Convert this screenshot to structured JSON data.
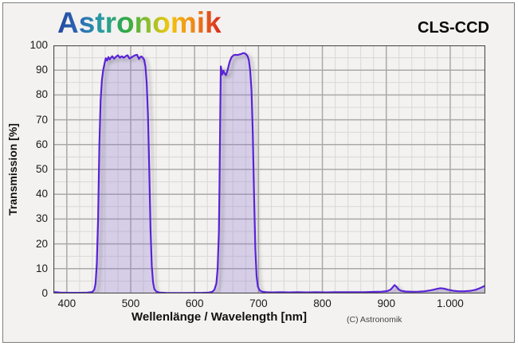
{
  "header": {
    "logo_text": "Astronomik",
    "filter_name": "CLS-CCD"
  },
  "footer": {
    "copyright": "(C) Astronomik"
  },
  "chart_data": {
    "type": "area",
    "title": "CLS-CCD",
    "xlabel": "Wellenlänge / Wavelength [nm]",
    "ylabel": "Transmission [%]",
    "xlim": [
      379,
      1055
    ],
    "ylim": [
      0,
      100
    ],
    "grid": "on",
    "x_major_ticks": [
      400,
      500,
      600,
      700,
      800,
      900,
      1000
    ],
    "x_tick_labels": [
      "400",
      "500",
      "600",
      "700",
      "800",
      "900",
      "1.000"
    ],
    "x_minor_start": 380,
    "x_minor_step": 20,
    "y_major_step": 10,
    "y_minor_step": 5,
    "y_tick_values": [
      0,
      10,
      20,
      30,
      40,
      50,
      60,
      70,
      80,
      90,
      100
    ],
    "colors": {
      "line": "#5a23d6",
      "fill": "#8c73d2",
      "fill_opacity": 0.28,
      "grid_major": "#a9a9a9",
      "grid_minor": "#d9d8d6",
      "plot_border": "#4d4d4d",
      "background": "#f3f2f0",
      "shadow": "#8a8a8a"
    },
    "series": [
      {
        "name": "CLS-CCD transmission",
        "points": [
          [
            379,
            0.6
          ],
          [
            390,
            0.4
          ],
          [
            405,
            0.3
          ],
          [
            420,
            0.3
          ],
          [
            432,
            0.4
          ],
          [
            440,
            0.6
          ],
          [
            443,
            1.5
          ],
          [
            445,
            4
          ],
          [
            447,
            12
          ],
          [
            449,
            30
          ],
          [
            451,
            60
          ],
          [
            453,
            78
          ],
          [
            455,
            86
          ],
          [
            457,
            90
          ],
          [
            459,
            92.5
          ],
          [
            461,
            94.8
          ],
          [
            463,
            93.8
          ],
          [
            465,
            95.3
          ],
          [
            467,
            94.3
          ],
          [
            469,
            95
          ],
          [
            471,
            95.6
          ],
          [
            474,
            94.6
          ],
          [
            477,
            95.4
          ],
          [
            480,
            96
          ],
          [
            483,
            95
          ],
          [
            486,
            95.6
          ],
          [
            489,
            95
          ],
          [
            492,
            95.6
          ],
          [
            495,
            96
          ],
          [
            498,
            94.7
          ],
          [
            501,
            95.1
          ],
          [
            504,
            95.6
          ],
          [
            507,
            96
          ],
          [
            510,
            96.2
          ],
          [
            513,
            94.5
          ],
          [
            515,
            95.3
          ],
          [
            517,
            95.5
          ],
          [
            519,
            95
          ],
          [
            521,
            94.2
          ],
          [
            523,
            91.5
          ],
          [
            525,
            85
          ],
          [
            527,
            72
          ],
          [
            529,
            50
          ],
          [
            531,
            26
          ],
          [
            533,
            11
          ],
          [
            535,
            4.5
          ],
          [
            537,
            1.8
          ],
          [
            540,
            0.8
          ],
          [
            545,
            0.4
          ],
          [
            555,
            0.25
          ],
          [
            570,
            0.2
          ],
          [
            585,
            0.2
          ],
          [
            600,
            0.25
          ],
          [
            612,
            0.3
          ],
          [
            622,
            0.4
          ],
          [
            628,
            0.7
          ],
          [
            631,
            1.5
          ],
          [
            634,
            4
          ],
          [
            636,
            10
          ],
          [
            638,
            25
          ],
          [
            639,
            45
          ],
          [
            640,
            70
          ],
          [
            641,
            91.5
          ],
          [
            642,
            90
          ],
          [
            643,
            88.2
          ],
          [
            644,
            88.8
          ],
          [
            645,
            89.8
          ],
          [
            647,
            88.6
          ],
          [
            649,
            88
          ],
          [
            651,
            89.5
          ],
          [
            653,
            91.5
          ],
          [
            655,
            93.5
          ],
          [
            658,
            95.3
          ],
          [
            661,
            96
          ],
          [
            664,
            96.2
          ],
          [
            667,
            96.1
          ],
          [
            670,
            96.3
          ],
          [
            673,
            96.5
          ],
          [
            676,
            96.9
          ],
          [
            679,
            96.7
          ],
          [
            681,
            96.3
          ],
          [
            683,
            95.6
          ],
          [
            685,
            94
          ],
          [
            687,
            90
          ],
          [
            689,
            82
          ],
          [
            691,
            65
          ],
          [
            693,
            40
          ],
          [
            695,
            18
          ],
          [
            697,
            7
          ],
          [
            699,
            2.8
          ],
          [
            702,
            1.2
          ],
          [
            706,
            0.7
          ],
          [
            712,
            0.5
          ],
          [
            722,
            0.45
          ],
          [
            735,
            0.5
          ],
          [
            748,
            0.45
          ],
          [
            762,
            0.5
          ],
          [
            775,
            0.45
          ],
          [
            790,
            0.5
          ],
          [
            805,
            0.45
          ],
          [
            820,
            0.5
          ],
          [
            835,
            0.5
          ],
          [
            850,
            0.5
          ],
          [
            865,
            0.55
          ],
          [
            880,
            0.65
          ],
          [
            893,
            0.75
          ],
          [
            902,
            1
          ],
          [
            907,
            1.6
          ],
          [
            911,
            2.8
          ],
          [
            913,
            3.4
          ],
          [
            916,
            2.7
          ],
          [
            919,
            1.7
          ],
          [
            923,
            1.1
          ],
          [
            930,
            0.8
          ],
          [
            940,
            0.7
          ],
          [
            950,
            0.75
          ],
          [
            960,
            0.9
          ],
          [
            970,
            1.3
          ],
          [
            978,
            1.8
          ],
          [
            984,
            2.1
          ],
          [
            990,
            2
          ],
          [
            997,
            1.5
          ],
          [
            1005,
            1.1
          ],
          [
            1013,
            0.9
          ],
          [
            1022,
            0.9
          ],
          [
            1032,
            1.1
          ],
          [
            1040,
            1.5
          ],
          [
            1047,
            2.2
          ],
          [
            1052,
            2.8
          ],
          [
            1055,
            3.2
          ]
        ]
      }
    ]
  }
}
